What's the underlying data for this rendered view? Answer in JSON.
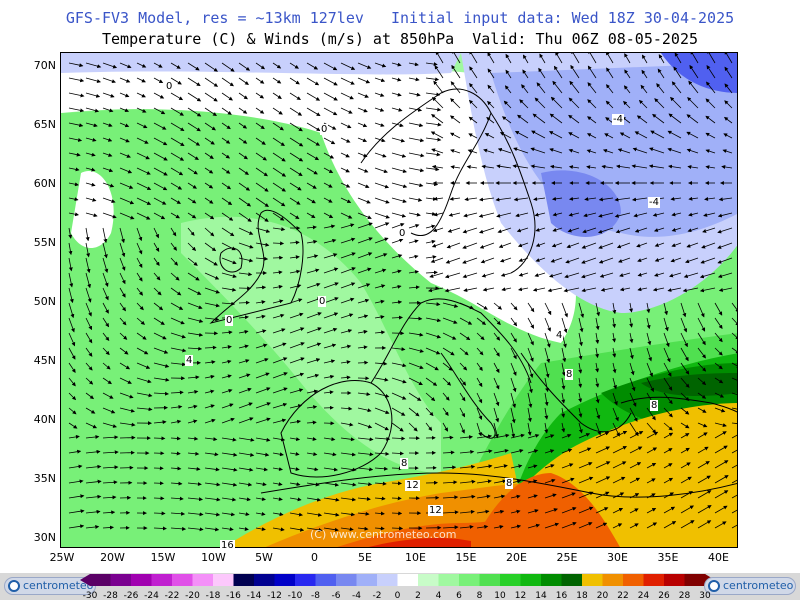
{
  "header": {
    "line1": "GFS-FV3 Model, res = ~13km 127lev   Initial input data: Wed 18Z 30-04-2025",
    "line2": "Temperature (C) & Winds (m/s) at 850hPa  Valid: Thu 06Z 08-05-2025"
  },
  "map": {
    "lat_labels": [
      "70N",
      "65N",
      "60N",
      "55N",
      "50N",
      "45N",
      "40N",
      "35N",
      "30N"
    ],
    "lon_labels": [
      "25W",
      "20W",
      "15W",
      "10W",
      "5W",
      "0",
      "5E",
      "10E",
      "15E",
      "20E",
      "25E",
      "30E",
      "35E",
      "40E"
    ],
    "watermark": "(C) www.centrometeo.com",
    "contour_labels": [
      "0",
      "0",
      "0",
      "0",
      "0",
      "-4",
      "-4",
      "4",
      "4",
      "8",
      "8",
      "8",
      "8",
      "12",
      "12",
      "16",
      "20",
      "16"
    ]
  },
  "colorbar": {
    "labels": [
      "-30",
      "-28",
      "-26",
      "-24",
      "-22",
      "-20",
      "-18",
      "-16",
      "-14",
      "-12",
      "-10",
      "-8",
      "-6",
      "-4",
      "-2",
      "0",
      "2",
      "4",
      "6",
      "8",
      "10",
      "12",
      "14",
      "16",
      "18",
      "20",
      "22",
      "24",
      "26",
      "28",
      "30"
    ],
    "colors": [
      "#5a0066",
      "#7a0090",
      "#a000b0",
      "#c020d0",
      "#e050e8",
      "#f490f8",
      "#fcc8fc",
      "#000050",
      "#000090",
      "#0000c8",
      "#2828f0",
      "#5060f0",
      "#7888f0",
      "#a0b0f8",
      "#c8d0fc",
      "#ffffff",
      "#c8fcc8",
      "#a0f8a0",
      "#78f078",
      "#50e050",
      "#28d028",
      "#10b810",
      "#008c00",
      "#006400",
      "#f0c000",
      "#f09000",
      "#f06000",
      "#e02000",
      "#b80000",
      "#800000"
    ]
  },
  "logos": {
    "left": "centrometeo",
    "right": "centrometeo"
  }
}
